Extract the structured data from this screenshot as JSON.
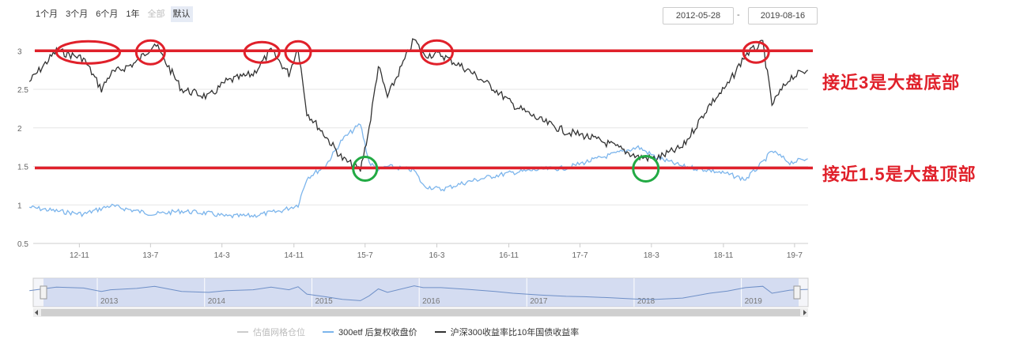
{
  "range_buttons": [
    "1个月",
    "3个月",
    "6个月",
    "1年",
    "全部",
    "默认"
  ],
  "date_range": {
    "start": "2012-05-28",
    "separator": "-",
    "end": "2019-08-16"
  },
  "annotations": {
    "top_line": "接近3是大盘底部",
    "bottom_line": "接近1.5是大盘顶部"
  },
  "colors": {
    "black_series": "#333333",
    "blue_series": "#7cb5ec",
    "annotation_red": "#e0202a",
    "circle_green": "#22aa44",
    "navigator_fill": "#c9d3ee"
  },
  "chart_data": {
    "type": "line",
    "title": "",
    "xlabel": "",
    "ylabel": "",
    "ylim": [
      0.5,
      3.3
    ],
    "y_ticks": [
      "0.5",
      "1",
      "1.5",
      "2",
      "2.5",
      "3"
    ],
    "x_ticks": [
      "12-11",
      "13-7",
      "14-3",
      "14-11",
      "15-7",
      "16-3",
      "16-11",
      "17-7",
      "18-3",
      "18-11",
      "19-7"
    ],
    "navigator_labels": [
      "2013",
      "2014",
      "2015",
      "2016",
      "2017",
      "2018",
      "2019"
    ],
    "grid": true,
    "legend_position": "bottom",
    "reference_lines": [
      3.0,
      1.5
    ],
    "series": [
      {
        "name": "估值网格仓位",
        "values": [],
        "visible": false
      },
      {
        "name": "300etf 后复权收盘价",
        "x": [
          "2012-05",
          "2012-08",
          "2012-11",
          "2013-02",
          "2013-05",
          "2013-07",
          "2013-10",
          "2014-01",
          "2014-03",
          "2014-06",
          "2014-09",
          "2014-11",
          "2014-12",
          "2015-02",
          "2015-04",
          "2015-06",
          "2015-07",
          "2015-08",
          "2015-09",
          "2015-12",
          "2016-01",
          "2016-03",
          "2016-06",
          "2016-09",
          "2016-11",
          "2017-02",
          "2017-05",
          "2017-07",
          "2017-10",
          "2018-01",
          "2018-03",
          "2018-06",
          "2018-09",
          "2018-11",
          "2019-01",
          "2019-03",
          "2019-04",
          "2019-06",
          "2019-08"
        ],
        "values": [
          0.97,
          0.92,
          0.88,
          0.99,
          0.92,
          0.88,
          0.92,
          0.89,
          0.85,
          0.86,
          0.92,
          1.0,
          1.35,
          1.5,
          1.85,
          2.05,
          1.55,
          1.45,
          1.5,
          1.45,
          1.25,
          1.2,
          1.3,
          1.38,
          1.42,
          1.46,
          1.48,
          1.55,
          1.65,
          1.75,
          1.62,
          1.5,
          1.45,
          1.4,
          1.33,
          1.55,
          1.7,
          1.55,
          1.6
        ]
      },
      {
        "name": "沪深300收益率比10年国债收益率",
        "x": [
          "2012-05",
          "2012-08",
          "2012-11",
          "2013-01",
          "2013-02",
          "2013-05",
          "2013-07",
          "2013-10",
          "2014-01",
          "2014-03",
          "2014-06",
          "2014-08",
          "2014-10",
          "2014-11",
          "2014-12",
          "2015-02",
          "2015-04",
          "2015-06",
          "2015-07",
          "2015-08",
          "2015-09",
          "2015-12",
          "2016-01",
          "2016-03",
          "2016-06",
          "2016-09",
          "2016-11",
          "2017-02",
          "2017-05",
          "2017-07",
          "2017-10",
          "2018-01",
          "2018-03",
          "2018-06",
          "2018-09",
          "2018-11",
          "2019-01",
          "2019-03",
          "2019-04",
          "2019-06",
          "2019-08"
        ],
        "values": [
          2.6,
          3.0,
          2.9,
          2.5,
          2.7,
          2.85,
          3.1,
          2.5,
          2.4,
          2.6,
          2.7,
          3.0,
          2.7,
          3.05,
          2.2,
          1.9,
          1.6,
          1.45,
          2.0,
          2.8,
          2.4,
          3.15,
          2.95,
          2.95,
          2.75,
          2.5,
          2.3,
          2.1,
          1.95,
          1.9,
          1.78,
          1.62,
          1.6,
          1.75,
          2.3,
          2.55,
          2.95,
          3.1,
          2.3,
          2.65,
          2.75
        ]
      }
    ]
  },
  "legend": [
    {
      "label": "估值网格仓位",
      "color": "#cccccc",
      "off": true
    },
    {
      "label": "300etf 后复权收盘价",
      "color": "#7cb5ec",
      "off": false
    },
    {
      "label": "沪深300收益率比10年国债收益率",
      "color": "#333333",
      "off": false
    }
  ]
}
